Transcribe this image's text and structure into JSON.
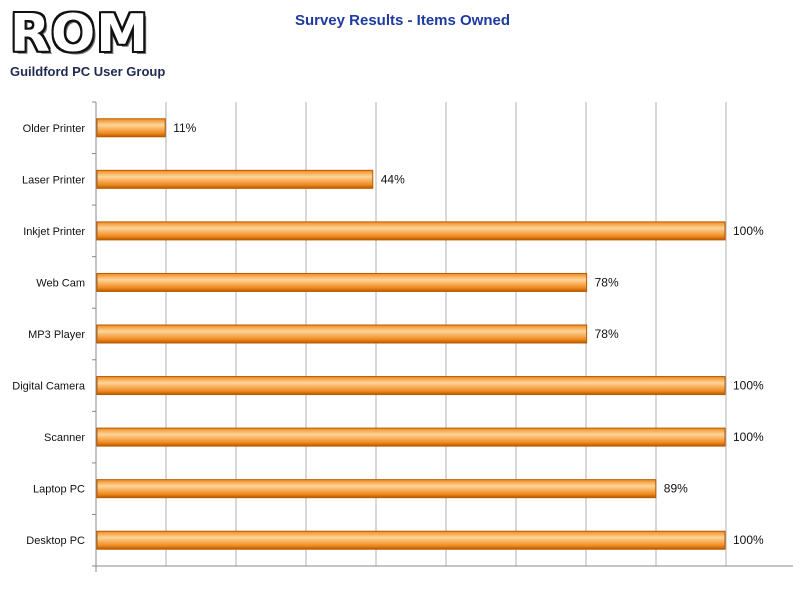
{
  "header": {
    "logo_text": "ROM",
    "logo_subtitle": "Guildford PC User Group"
  },
  "colors": {
    "bar_fill": "#f08a1e",
    "bar_highlight": "#ffd59a",
    "bar_shadow": "#b85a00",
    "gridline": "#b0b0b0",
    "title": "#1f3aa0"
  },
  "chart_data": {
    "type": "bar",
    "orientation": "horizontal",
    "title": "Survey Results - Items Owned",
    "xlabel": "",
    "ylabel": "",
    "categories": [
      "Older Printer",
      "Laser Printer",
      "Inkjet Printer",
      "Web Cam",
      "MP3 Player",
      "Digital Camera",
      "Scanner",
      "Laptop PC",
      "Desktop PC"
    ],
    "values": [
      11,
      44,
      100,
      78,
      78,
      100,
      100,
      89,
      100
    ],
    "value_labels": [
      "11%",
      "44%",
      "100%",
      "78%",
      "78%",
      "100%",
      "100%",
      "89%",
      "100%"
    ],
    "xlim": [
      0,
      100
    ],
    "grid": true,
    "legend": "none"
  }
}
